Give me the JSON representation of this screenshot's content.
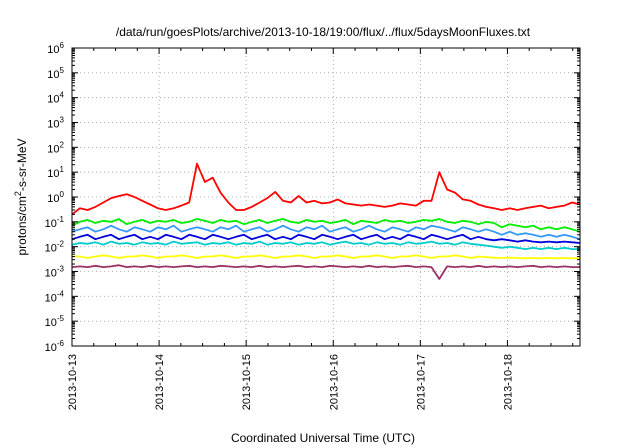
{
  "chart_data": {
    "type": "line",
    "title": "/data/run/goesPlots/archive/2013-10-18/19:00/flux/../flux/5daysMoonFluxes.txt",
    "xlabel": "Coordinated Universal Time (UTC)",
    "ylabel_main": "protons/cm",
    "ylabel_sup": "2",
    "ylabel_tail": "-s-sr-MeV",
    "y_scale": "log",
    "ylim": [
      1e-06,
      1000000.0
    ],
    "y_ticks": [
      {
        "base": "10",
        "exp": "-6"
      },
      {
        "base": "10",
        "exp": "-5"
      },
      {
        "base": "10",
        "exp": "-4"
      },
      {
        "base": "10",
        "exp": "-3"
      },
      {
        "base": "10",
        "exp": "-2"
      },
      {
        "base": "10",
        "exp": "-1"
      },
      {
        "base": "10",
        "exp": "0"
      },
      {
        "base": "10",
        "exp": "1"
      },
      {
        "base": "10",
        "exp": "2"
      },
      {
        "base": "10",
        "exp": "3"
      },
      {
        "base": "10",
        "exp": "4"
      },
      {
        "base": "10",
        "exp": "5"
      },
      {
        "base": "10",
        "exp": "6"
      }
    ],
    "xlim": [
      "2013-10-13",
      "2013-10-18T20:00"
    ],
    "x_ticks": [
      "2013-10-13",
      "2013-10-14",
      "2013-10-15",
      "2013-10-16",
      "2013-10-17",
      "2013-10-18"
    ],
    "grid": true,
    "series": [
      {
        "color": "#ff0000",
        "values": [
          0.2,
          0.35,
          0.3,
          0.4,
          0.6,
          0.9,
          1.1,
          1.3,
          1.0,
          0.7,
          0.5,
          0.35,
          0.3,
          0.35,
          0.45,
          0.6,
          22.0,
          4.0,
          6.0,
          1.5,
          0.6,
          0.3,
          0.3,
          0.4,
          0.6,
          0.9,
          1.6,
          0.7,
          0.6,
          1.1,
          0.6,
          0.7,
          0.55,
          0.6,
          0.8,
          0.55,
          0.5,
          0.45,
          0.5,
          0.45,
          0.4,
          0.45,
          0.55,
          0.5,
          0.45,
          0.7,
          0.7,
          10.0,
          2.0,
          1.5,
          0.8,
          0.7,
          0.5,
          0.4,
          0.35,
          0.3,
          0.35,
          0.3,
          0.35,
          0.4,
          0.45,
          0.35,
          0.4,
          0.45,
          0.6,
          0.5
        ]
      },
      {
        "color": "#00ee00",
        "values": [
          0.07,
          0.1,
          0.12,
          0.09,
          0.11,
          0.1,
          0.13,
          0.08,
          0.1,
          0.12,
          0.09,
          0.11,
          0.1,
          0.12,
          0.09,
          0.1,
          0.13,
          0.11,
          0.09,
          0.12,
          0.1,
          0.11,
          0.08,
          0.1,
          0.12,
          0.09,
          0.11,
          0.13,
          0.1,
          0.09,
          0.12,
          0.1,
          0.11,
          0.09,
          0.1,
          0.12,
          0.08,
          0.11,
          0.1,
          0.09,
          0.12,
          0.1,
          0.11,
          0.09,
          0.1,
          0.12,
          0.11,
          0.13,
          0.1,
          0.09,
          0.11,
          0.1,
          0.08,
          0.1,
          0.09,
          0.06,
          0.08,
          0.07,
          0.06,
          0.07,
          0.05,
          0.06,
          0.05,
          0.06,
          0.05,
          0.04
        ]
      },
      {
        "color": "#3399ff",
        "values": [
          0.04,
          0.05,
          0.06,
          0.04,
          0.05,
          0.07,
          0.05,
          0.04,
          0.06,
          0.05,
          0.04,
          0.06,
          0.05,
          0.07,
          0.04,
          0.05,
          0.06,
          0.05,
          0.04,
          0.06,
          0.05,
          0.07,
          0.04,
          0.05,
          0.06,
          0.04,
          0.05,
          0.07,
          0.05,
          0.04,
          0.06,
          0.05,
          0.07,
          0.04,
          0.05,
          0.06,
          0.04,
          0.05,
          0.07,
          0.05,
          0.04,
          0.06,
          0.05,
          0.04,
          0.06,
          0.05,
          0.07,
          0.06,
          0.05,
          0.04,
          0.06,
          0.05,
          0.04,
          0.05,
          0.04,
          0.03,
          0.04,
          0.03,
          0.035,
          0.03,
          0.025,
          0.03,
          0.025,
          0.03,
          0.025,
          0.02
        ]
      },
      {
        "color": "#0000dd",
        "values": [
          0.02,
          0.025,
          0.03,
          0.02,
          0.025,
          0.03,
          0.02,
          0.025,
          0.03,
          0.02,
          0.025,
          0.02,
          0.03,
          0.025,
          0.02,
          0.03,
          0.025,
          0.02,
          0.03,
          0.025,
          0.02,
          0.025,
          0.03,
          0.02,
          0.025,
          0.03,
          0.02,
          0.025,
          0.02,
          0.03,
          0.025,
          0.02,
          0.03,
          0.025,
          0.02,
          0.025,
          0.03,
          0.02,
          0.025,
          0.03,
          0.02,
          0.025,
          0.02,
          0.03,
          0.025,
          0.02,
          0.03,
          0.025,
          0.02,
          0.025,
          0.03,
          0.02,
          0.025,
          0.02,
          0.018,
          0.02,
          0.018,
          0.016,
          0.018,
          0.016,
          0.015,
          0.016,
          0.015,
          0.016,
          0.015,
          0.014
        ]
      },
      {
        "color": "#00cccc",
        "values": [
          0.012,
          0.014,
          0.013,
          0.015,
          0.012,
          0.016,
          0.013,
          0.014,
          0.012,
          0.015,
          0.013,
          0.014,
          0.012,
          0.016,
          0.013,
          0.014,
          0.015,
          0.012,
          0.014,
          0.013,
          0.015,
          0.012,
          0.014,
          0.013,
          0.016,
          0.012,
          0.014,
          0.013,
          0.015,
          0.012,
          0.014,
          0.013,
          0.015,
          0.012,
          0.014,
          0.016,
          0.013,
          0.014,
          0.012,
          0.015,
          0.013,
          0.014,
          0.012,
          0.015,
          0.013,
          0.014,
          0.016,
          0.013,
          0.014,
          0.012,
          0.015,
          0.013,
          0.012,
          0.011,
          0.01,
          0.009,
          0.01,
          0.009,
          0.008,
          0.009,
          0.008,
          0.009,
          0.008,
          0.009,
          0.008,
          0.008
        ]
      },
      {
        "color": "#ffff00",
        "values": [
          0.004,
          0.004,
          0.0035,
          0.004,
          0.0045,
          0.004,
          0.0035,
          0.004,
          0.004,
          0.0045,
          0.004,
          0.0035,
          0.004,
          0.004,
          0.0045,
          0.004,
          0.0035,
          0.004,
          0.004,
          0.0045,
          0.004,
          0.0035,
          0.004,
          0.004,
          0.0045,
          0.004,
          0.0035,
          0.004,
          0.004,
          0.0045,
          0.004,
          0.0035,
          0.004,
          0.004,
          0.0045,
          0.004,
          0.0035,
          0.004,
          0.004,
          0.0045,
          0.004,
          0.0035,
          0.004,
          0.004,
          0.0045,
          0.004,
          0.0035,
          0.004,
          0.004,
          0.0045,
          0.004,
          0.0035,
          0.004,
          0.0038,
          0.0036,
          0.0035,
          0.0036,
          0.0035,
          0.0034,
          0.0035,
          0.0034,
          0.0035,
          0.0034,
          0.0035,
          0.0034,
          0.0034
        ]
      },
      {
        "color": "#993366",
        "values": [
          0.0015,
          0.0016,
          0.0015,
          0.0017,
          0.0015,
          0.0016,
          0.0018,
          0.0015,
          0.0016,
          0.0015,
          0.0017,
          0.0015,
          0.0016,
          0.0015,
          0.0016,
          0.0017,
          0.0015,
          0.0016,
          0.0015,
          0.0017,
          0.0016,
          0.0015,
          0.0016,
          0.0015,
          0.0017,
          0.0015,
          0.0016,
          0.0015,
          0.0016,
          0.0017,
          0.0015,
          0.0016,
          0.0015,
          0.0017,
          0.0016,
          0.0015,
          0.0016,
          0.0015,
          0.0017,
          0.0015,
          0.0016,
          0.0015,
          0.0016,
          0.0017,
          0.0015,
          0.0016,
          0.0015,
          0.0005,
          0.0016,
          0.0015,
          0.0016,
          0.0015,
          0.0017,
          0.0015,
          0.0016,
          0.0015,
          0.0016,
          0.0015,
          0.0016,
          0.0017,
          0.0015,
          0.0016,
          0.0015,
          0.0016,
          0.0015,
          0.0015
        ]
      }
    ]
  }
}
